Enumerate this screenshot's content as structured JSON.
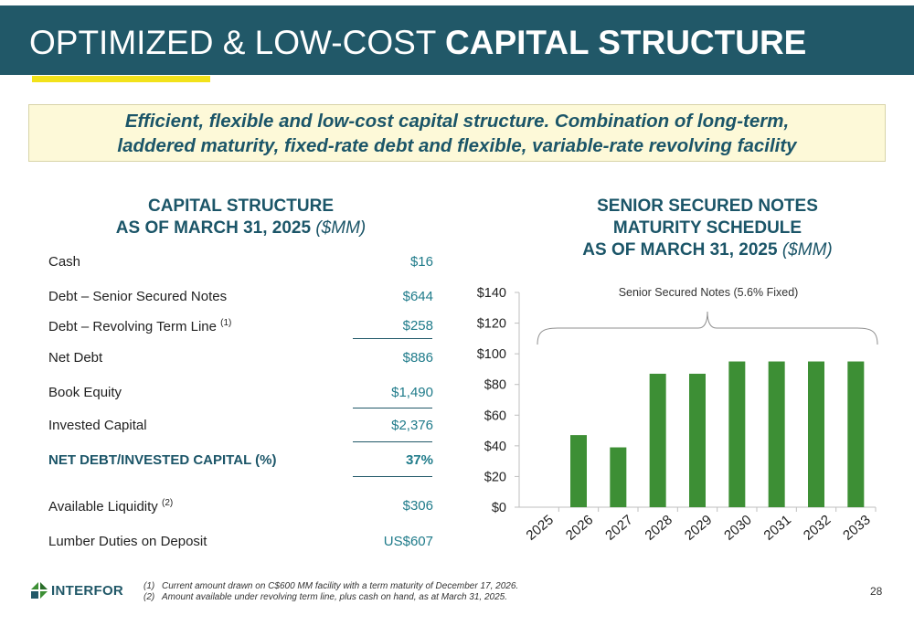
{
  "header": {
    "title_light": "OPTIMIZED & LOW-COST ",
    "title_bold": "CAPITAL STRUCTURE"
  },
  "subtitle": {
    "line1": "Efficient, flexible and low-cost capital structure. Combination of long-term,",
    "line2": "laddered maturity, fixed-rate debt and flexible, variable-rate revolving facility"
  },
  "capital_structure": {
    "title_line1": "CAPITAL STRUCTURE",
    "title_line2": "AS OF MARCH 31, 2025",
    "title_unit": "($MM)",
    "rows": [
      {
        "label": "Cash",
        "sup": "",
        "value": "$16"
      },
      {
        "label": "Debt – Senior Secured Notes",
        "sup": "",
        "value": "$644"
      },
      {
        "label": "Debt – Revolving Term Line",
        "sup": "(1)",
        "value": "$258"
      },
      {
        "label": "Net Debt",
        "sup": "",
        "value": "$886"
      },
      {
        "label": "Book Equity",
        "sup": "",
        "value": "$1,490"
      },
      {
        "label": "Invested Capital",
        "sup": "",
        "value": "$2,376"
      },
      {
        "label": "NET DEBT/INVESTED CAPITAL (%)",
        "sup": "",
        "value": "37%"
      },
      {
        "label": "Available Liquidity",
        "sup": "(2)",
        "value": "$306"
      },
      {
        "label": "Lumber Duties on Deposit",
        "sup": "",
        "value": "US$607"
      }
    ]
  },
  "maturity": {
    "title_line1": "SENIOR SECURED NOTES",
    "title_line2": "MATURITY SCHEDULE",
    "title_line3": "AS OF MARCH 31, 2025",
    "title_unit": "($MM)"
  },
  "chart_data": {
    "type": "bar",
    "categories": [
      "2025",
      "2026",
      "2027",
      "2028",
      "2029",
      "2030",
      "2031",
      "2032",
      "2033"
    ],
    "values": [
      0,
      47,
      39,
      87,
      87,
      95,
      95,
      95,
      95
    ],
    "y_ticks": [
      "$0",
      "$20",
      "$40",
      "$60",
      "$80",
      "$100",
      "$120",
      "$140"
    ],
    "ylim": [
      0,
      140
    ],
    "annotation": "Senior Secured Notes (5.6% Fixed)",
    "bar_color": "#3d8f35",
    "title": "",
    "xlabel": "",
    "ylabel": ""
  },
  "footer": {
    "logo": "INTERFOR",
    "footnotes": [
      {
        "num": "(1)",
        "text": "Current amount drawn on C$600 MM facility with a term maturity of December 17, 2026."
      },
      {
        "num": "(2)",
        "text": "Amount available under revolving term line, plus cash on hand, as at March 31, 2025."
      }
    ],
    "page": "28"
  },
  "colors": {
    "header_bg": "#215868",
    "accent": "#f2e21a",
    "title_teal": "#1b5568",
    "value_teal": "#1f7b8a"
  }
}
